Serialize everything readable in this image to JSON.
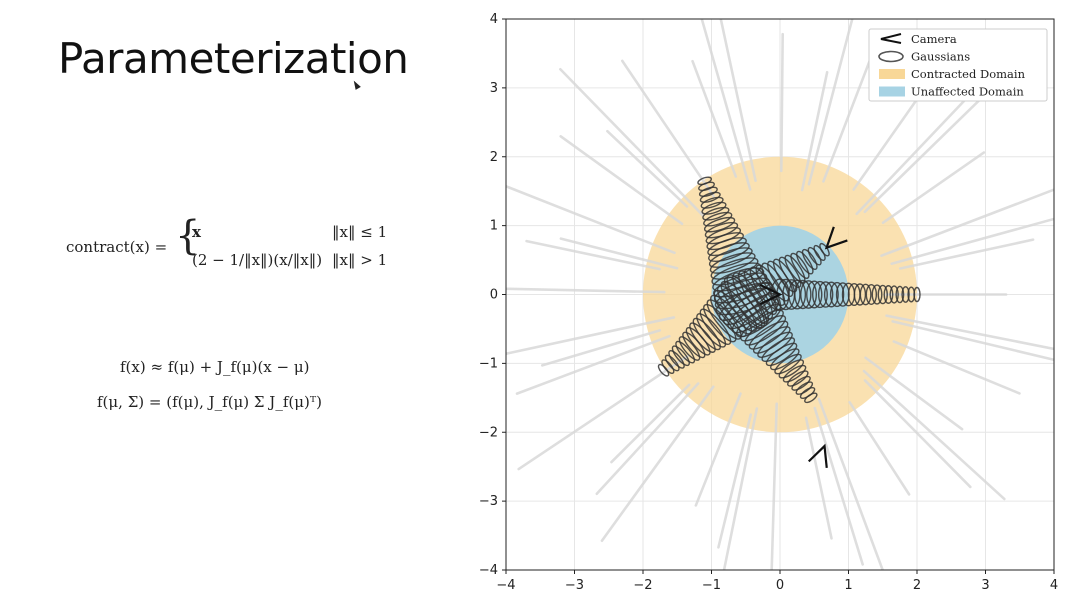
{
  "slide": {
    "title": "Parameterization"
  },
  "equations": {
    "contract_lhs": "contract(x) =",
    "contract_case1_value": "x",
    "contract_case1_cond": "‖x‖ ≤ 1",
    "contract_case2_value": "(2 − 1/‖x‖)(x/‖x‖)",
    "contract_case2_cond": "‖x‖ > 1",
    "taylor": "f(x) ≈ f(μ) + J_f(μ)(x − μ)",
    "gaussian_transform": "f(μ, Σ) = (f(μ), J_f(μ) Σ J_f(μ)ᵀ)"
  },
  "chart_data": {
    "type": "scatter",
    "xlim": [
      -4,
      4
    ],
    "ylim": [
      -4,
      4
    ],
    "x_ticks": [
      "−4",
      "−3",
      "−2",
      "−1",
      "0",
      "1",
      "2",
      "3",
      "4"
    ],
    "y_ticks": [
      "4",
      "3",
      "2",
      "1",
      "0",
      "−1",
      "−2",
      "−3",
      "−4"
    ],
    "grid": true,
    "legend_position": "top-right",
    "legend": [
      {
        "label": "Camera",
        "kind": "camera-icon"
      },
      {
        "label": "Gaussians",
        "kind": "ellipse"
      },
      {
        "label": "Contracted Domain",
        "kind": "patch",
        "color": "#f8d797"
      },
      {
        "label": "Unaffected Domain",
        "kind": "patch",
        "color": "#a7d3e4"
      }
    ],
    "regions": [
      {
        "name": "Contracted Domain",
        "radius": 2,
        "color": "#f8d797"
      },
      {
        "name": "Unaffected Domain",
        "radius": 1,
        "color": "#a7d3e4"
      }
    ],
    "cameras": [
      {
        "x": 0.0,
        "y": 0.0,
        "dir_deg": 180
      },
      {
        "x": 0.68,
        "y": 0.68,
        "dir_deg": 45
      },
      {
        "x": 0.65,
        "y": -2.2,
        "dir_deg": 250
      }
    ],
    "gaussian_chains": [
      {
        "from": [
          0.0,
          0.0
        ],
        "to": [
          2.0,
          0.0
        ]
      },
      {
        "from": [
          -0.5,
          -0.1
        ],
        "to": [
          0.65,
          0.65
        ]
      },
      {
        "from": [
          -0.5,
          -0.1
        ],
        "to": [
          -1.7,
          -1.1
        ]
      },
      {
        "from": [
          -0.5,
          -0.1
        ],
        "to": [
          -1.1,
          1.65
        ]
      },
      {
        "from": [
          -0.5,
          -0.1
        ],
        "to": [
          0.45,
          -1.5
        ]
      }
    ],
    "colors": {
      "contracted": "#f8d797",
      "unaffected": "#a7d3e4",
      "gaussian_edge": "#333333",
      "ray": "#d9d9d9"
    }
  }
}
